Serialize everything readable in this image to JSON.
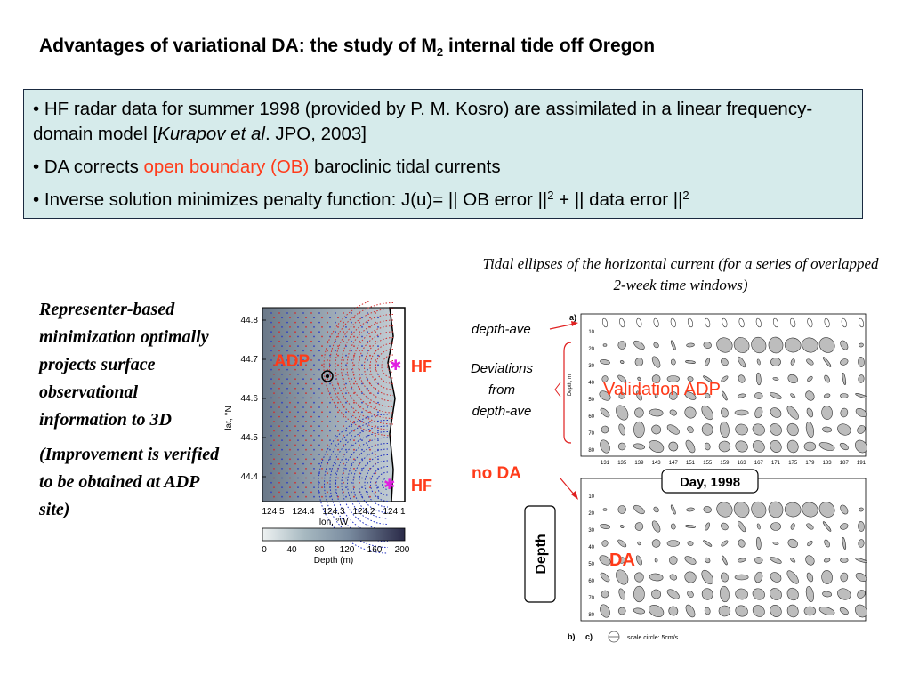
{
  "title": {
    "main": "Advantages of variational DA: the study of M",
    "sub": "2",
    "rest": " internal tide off Oregon"
  },
  "bullets": {
    "b1_text": "• HF radar data for summer 1998 (provided by P. M. Kosro) are assimilated in a linear frequency-domain model [",
    "b1_cite": "Kurapov et al",
    "b1_end": ". JPO, 2003]",
    "b2_pre": "• DA corrects ",
    "b2_red": "open boundary (OB)",
    "b2_post": " baroclinic tidal currents",
    "b3_pre": "• Inverse solution minimizes penalty function: J(u)= || OB error ||",
    "b3_sup1": "2",
    "b3_mid": " + || data error ||",
    "b3_sup2": "2"
  },
  "left_text": {
    "p1": "Representer-based minimization optimally projects surface observational information to 3D",
    "p2": "(Improvement is verified to be obtained at ADP site)"
  },
  "map": {
    "ylabel": "lat, °N",
    "xlabel": "lon, °W",
    "yticks": [
      "44.8",
      "44.7",
      "44.6",
      "44.5",
      "44.4"
    ],
    "xticks": [
      "124.5",
      "124.4",
      "124.3",
      "124.2",
      "124.1"
    ],
    "adp_label": "ADP",
    "hf_label_top": "HF",
    "hf_label_bottom": "HF",
    "colorbar_ticks": [
      "0",
      "40",
      "80",
      "120",
      "160",
      "200"
    ],
    "colorbar_label": "Depth (m)"
  },
  "caption": "Tidal ellipses of the horizontal current (for a series of overlapped 2-week time windows)",
  "ellipse_plot": {
    "panel_a": "a)",
    "panel_b": "b)",
    "panel_c": "c)",
    "depth_ave_label": "depth-ave",
    "deviations_label_1": "Deviations",
    "deviations_label_2": "from",
    "deviations_label_3": "depth-ave",
    "validation_label": "Validation ADP",
    "no_da_label": "no DA",
    "da_label": "DA",
    "day_label": "Day, 1998",
    "depth_box_label": "Depth",
    "y_axis_title": "Depth, m",
    "depth_ticks": [
      "10",
      "20",
      "30",
      "40",
      "50",
      "60",
      "70",
      "80"
    ],
    "day_ticks": [
      "131",
      "135",
      "139",
      "143",
      "147",
      "151",
      "155",
      "159",
      "163",
      "167",
      "171",
      "175",
      "179",
      "183",
      "187",
      "191"
    ],
    "scale_text": "scale circle: 5cm/s"
  },
  "colors": {
    "accent_red": "#ff3b1a",
    "box_fill": "#d6ebeb",
    "magenta": "#e020e0"
  }
}
